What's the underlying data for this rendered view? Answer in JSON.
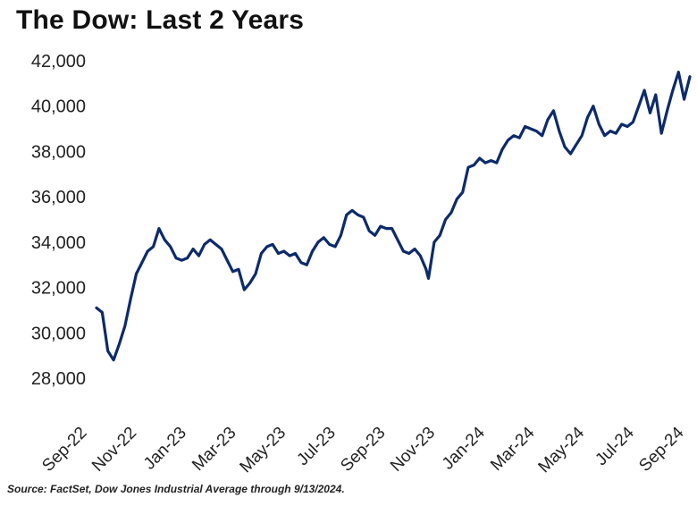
{
  "title": "The Dow: Last 2 Years",
  "source": "Source: FactSet, Dow Jones Industrial Average through 9/13/2024.",
  "colors": {
    "line": "#0d2a6b",
    "text": "#222222"
  },
  "chart_data": {
    "type": "line",
    "title": "The Dow: Last 2 Years",
    "xlabel": "",
    "ylabel": "",
    "ylim": [
      28000,
      42000
    ],
    "yticks": [
      "28,000",
      "30,000",
      "32,000",
      "34,000",
      "36,000",
      "38,000",
      "40,000",
      "42,000"
    ],
    "xticks": [
      "Sep-22",
      "Nov-22",
      "Jan-23",
      "Mar-23",
      "May-23",
      "Jul-23",
      "Sep-23",
      "Nov-23",
      "Jan-24",
      "Mar-24",
      "May-24",
      "Jul-24",
      "Sep-24"
    ],
    "grid": false,
    "series": [
      {
        "x": [
          "2022-09-13",
          "2022-09-20",
          "2022-09-27",
          "2022-10-04",
          "2022-10-11",
          "2022-10-18",
          "2022-10-25",
          "2022-11-01",
          "2022-11-08",
          "2022-11-15",
          "2022-11-22",
          "2022-11-29",
          "2022-12-06",
          "2022-12-13",
          "2022-12-20",
          "2022-12-27",
          "2023-01-03",
          "2023-01-10",
          "2023-01-17",
          "2023-01-24",
          "2023-01-31",
          "2023-02-07",
          "2023-02-14",
          "2023-02-21",
          "2023-02-28",
          "2023-03-07",
          "2023-03-14",
          "2023-03-21",
          "2023-03-28",
          "2023-04-04",
          "2023-04-11",
          "2023-04-18",
          "2023-04-25",
          "2023-05-02",
          "2023-05-09",
          "2023-05-16",
          "2023-05-23",
          "2023-05-30",
          "2023-06-06",
          "2023-06-13",
          "2023-06-20",
          "2023-06-27",
          "2023-07-04",
          "2023-07-11",
          "2023-07-18",
          "2023-07-25",
          "2023-08-01",
          "2023-08-08",
          "2023-08-15",
          "2023-08-22",
          "2023-08-29",
          "2023-09-05",
          "2023-09-12",
          "2023-09-19",
          "2023-09-26",
          "2023-10-03",
          "2023-10-10",
          "2023-10-17",
          "2023-10-24",
          "2023-10-27",
          "2023-11-03",
          "2023-11-10",
          "2023-11-17",
          "2023-11-24",
          "2023-12-01",
          "2023-12-08",
          "2023-12-15",
          "2023-12-22",
          "2023-12-29",
          "2024-01-05",
          "2024-01-12",
          "2024-01-19",
          "2024-01-26",
          "2024-02-02",
          "2024-02-09",
          "2024-02-16",
          "2024-02-23",
          "2024-03-01",
          "2024-03-08",
          "2024-03-15",
          "2024-03-22",
          "2024-03-29",
          "2024-04-05",
          "2024-04-12",
          "2024-04-19",
          "2024-04-26",
          "2024-05-03",
          "2024-05-10",
          "2024-05-17",
          "2024-05-24",
          "2024-05-31",
          "2024-06-07",
          "2024-06-14",
          "2024-06-21",
          "2024-06-28",
          "2024-07-05",
          "2024-07-12",
          "2024-07-19",
          "2024-07-26",
          "2024-08-02",
          "2024-08-09",
          "2024-08-16",
          "2024-08-23",
          "2024-08-30",
          "2024-09-06",
          "2024-09-13"
        ],
        "values": [
          31100,
          30900,
          29200,
          28800,
          29500,
          30300,
          31500,
          32600,
          33100,
          33600,
          33800,
          34600,
          34100,
          33800,
          33300,
          33200,
          33300,
          33700,
          33400,
          33900,
          34100,
          33900,
          33700,
          33200,
          32700,
          32800,
          31900,
          32200,
          32600,
          33500,
          33800,
          33900,
          33500,
          33600,
          33400,
          33500,
          33100,
          33000,
          33600,
          34000,
          34200,
          33900,
          33800,
          34300,
          35200,
          35400,
          35200,
          35100,
          34500,
          34300,
          34700,
          34600,
          34600,
          34100,
          33600,
          33500,
          33700,
          33400,
          32800,
          32400,
          34000,
          34300,
          35000,
          35300,
          35900,
          36200,
          37300,
          37400,
          37700,
          37500,
          37600,
          37500,
          38100,
          38500,
          38700,
          38600,
          39100,
          39000,
          38900,
          38700,
          39400,
          39800,
          38900,
          38200,
          37900,
          38300,
          38700,
          39500,
          40000,
          39200,
          38700,
          38900,
          38800,
          39200,
          39100,
          39300,
          40000,
          40700,
          39700,
          40500,
          38800,
          39800,
          40700,
          41500,
          40300,
          41300
        ]
      }
    ]
  }
}
